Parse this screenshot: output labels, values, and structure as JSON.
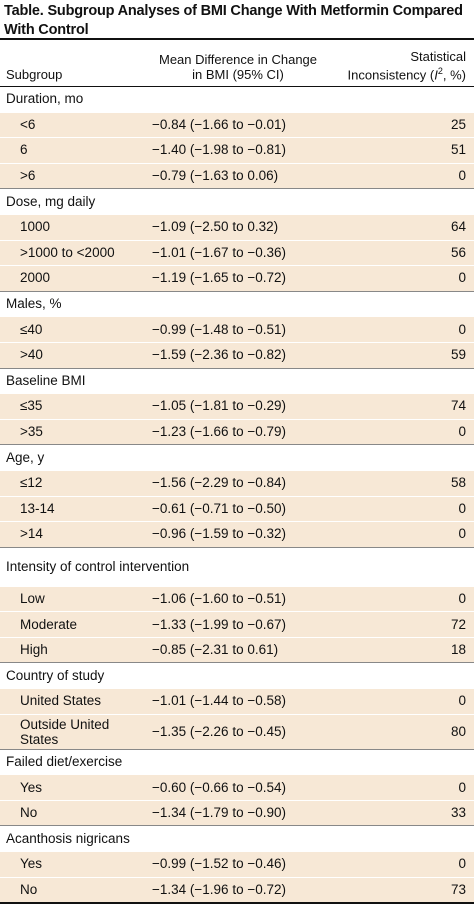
{
  "title": "Table. Subgroup Analyses of BMI Change With Metformin Compared With Control",
  "columns": {
    "subgroup": "Subgroup",
    "mean_difference": "Mean Difference in Change in BMI (95% CI)",
    "inconsistency_prefix": "Statistical Inconsistency (",
    "inconsistency_symbol": "I",
    "inconsistency_sup": "2",
    "inconsistency_suffix": ", %)"
  },
  "groups": [
    {
      "name": "Duration, mo",
      "rows": [
        {
          "label": "<6",
          "ci": "−0.84 (−1.66 to −0.01)",
          "i2": "25"
        },
        {
          "label": "6",
          "ci": "−1.40 (−1.98 to −0.81)",
          "i2": "51"
        },
        {
          "label": ">6",
          "ci": "−0.79 (−1.63 to 0.06)",
          "i2": "0"
        }
      ]
    },
    {
      "name": "Dose, mg daily",
      "rows": [
        {
          "label": "1000",
          "ci": "−1.09 (−2.50 to 0.32)",
          "i2": "64"
        },
        {
          "label": ">1000 to <2000",
          "ci": "−1.01 (−1.67 to −0.36)",
          "i2": "56"
        },
        {
          "label": "2000",
          "ci": "−1.19 (−1.65 to −0.72)",
          "i2": "0"
        }
      ]
    },
    {
      "name": "Males, %",
      "rows": [
        {
          "label": "≤40",
          "ci": "−0.99 (−1.48 to −0.51)",
          "i2": "0"
        },
        {
          "label": ">40",
          "ci": "−1.59 (−2.36 to −0.82)",
          "i2": "59"
        }
      ]
    },
    {
      "name": "Baseline BMI",
      "rows": [
        {
          "label": "≤35",
          "ci": "−1.05 (−1.81 to −0.29)",
          "i2": "74"
        },
        {
          "label": ">35",
          "ci": "−1.23 (−1.66 to −0.79)",
          "i2": "0"
        }
      ]
    },
    {
      "name": "Age, y",
      "rows": [
        {
          "label": "≤12",
          "ci": "−1.56 (−2.29 to −0.84)",
          "i2": "58"
        },
        {
          "label": "13-14",
          "ci": "−0.61 (−0.71 to −0.50)",
          "i2": "0"
        },
        {
          "label": ">14",
          "ci": "−0.96 (−1.59 to −0.32)",
          "i2": "0"
        }
      ]
    },
    {
      "name": "Intensity of control intervention",
      "rows": [
        {
          "label": "Low",
          "ci": "−1.06 (−1.60 to −0.51)",
          "i2": "0"
        },
        {
          "label": "Moderate",
          "ci": "−1.33 (−1.99 to −0.67)",
          "i2": "72"
        },
        {
          "label": "High",
          "ci": "−0.85 (−2.31 to 0.61)",
          "i2": "18"
        }
      ]
    },
    {
      "name": "Country of study",
      "rows": [
        {
          "label": "United States",
          "ci": "−1.01 (−1.44 to −0.58)",
          "i2": "0"
        },
        {
          "label": "Outside United States",
          "ci": "−1.35 (−2.26 to −0.45)",
          "i2": "80"
        }
      ]
    },
    {
      "name": "Failed diet/exercise",
      "rows": [
        {
          "label": "Yes",
          "ci": "−0.60 (−0.66 to −0.54)",
          "i2": "0"
        },
        {
          "label": "No",
          "ci": "−1.34 (−1.79 to −0.90)",
          "i2": "33"
        }
      ]
    },
    {
      "name": "Acanthosis nigricans",
      "rows": [
        {
          "label": "Yes",
          "ci": "−0.99 (−1.52 to −0.46)",
          "i2": "0"
        },
        {
          "label": "No",
          "ci": "−1.34 (−1.96 to −0.72)",
          "i2": "73"
        }
      ]
    }
  ],
  "colors": {
    "row_shade": "#f7e8d6",
    "rule": "#111111"
  }
}
